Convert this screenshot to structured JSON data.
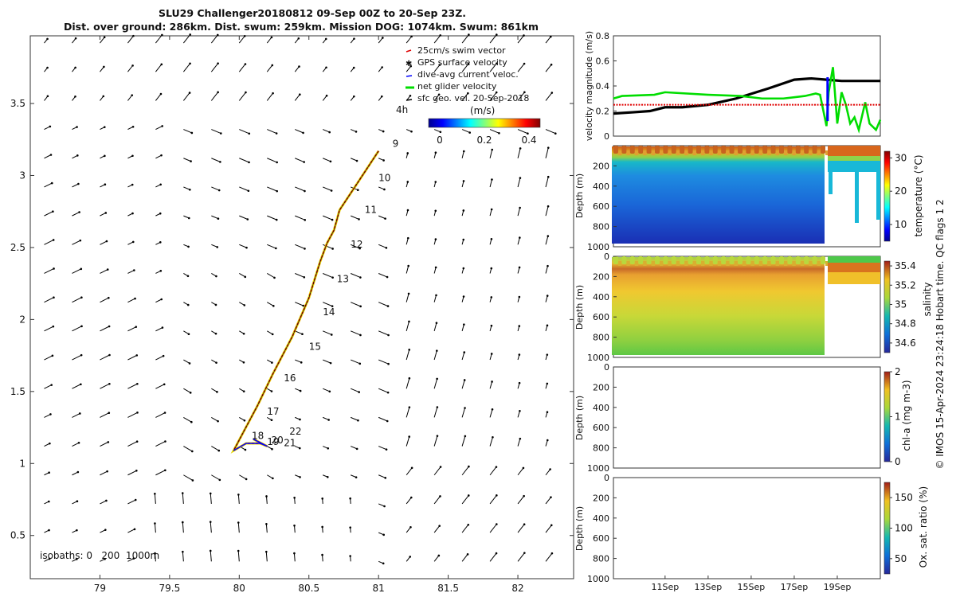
{
  "title": {
    "line1": "SLU29 Challenger20180812 09-Sep 00Z to 20-Sep 23Z.",
    "line2": "Dist. over ground: 286km. Dist. swum: 259km. Mission DOG: 1074km. Swum: 861km"
  },
  "colors": {
    "swim": "#e00000",
    "gps": "#8b00ff",
    "current": "#0000ff",
    "net": "#00dd00",
    "sfc": "#000000",
    "track": "#e8d800"
  },
  "chart_data": [
    {
      "type": "scatter",
      "title": "glider track with surface geostrophic velocity vectors",
      "xlim": [
        78.5,
        82.4
      ],
      "ylim": [
        0.2,
        3.97
      ],
      "xticks": [
        79,
        79.5,
        80,
        80.5,
        81,
        81.5,
        82
      ],
      "xtick_labels": [
        "79",
        "79.5",
        "80",
        "80.5",
        "81",
        "81.5",
        "82"
      ],
      "yticks": [
        0.5,
        1,
        1.5,
        2,
        2.5,
        3,
        3.5
      ],
      "ytick_labels": [
        "0.5",
        "1",
        "1.5",
        "2",
        "2.5",
        "3",
        "3.5"
      ],
      "legend": [
        {
          "label": "25cm/s swim vector",
          "color": "#e00000"
        },
        {
          "label": "GPS surface velocity",
          "color": "#8b00ff"
        },
        {
          "label": "dive-avg current veloc.",
          "color": "#0000ff"
        },
        {
          "label": "net glider velocity",
          "color": "#00dd00"
        },
        {
          "label": "sfc geo. vel. 20-Sep-2018",
          "color": "#000000"
        }
      ],
      "scale_label": "4h",
      "colorbar": {
        "label": "(m/s)",
        "range": [
          0,
          0.5
        ],
        "ticks": [
          0,
          0.2,
          0.4
        ],
        "tick_labels": [
          "0",
          "0.2",
          "0.4"
        ]
      },
      "isobaths_label": "isobaths: 0   200  1000m",
      "track": [
        [
          81.0,
          3.17
        ],
        [
          80.85,
          2.95
        ],
        [
          80.72,
          2.76
        ],
        [
          80.68,
          2.62
        ],
        [
          80.63,
          2.53
        ],
        [
          80.58,
          2.4
        ],
        [
          80.5,
          2.15
        ],
        [
          80.38,
          1.88
        ],
        [
          80.24,
          1.62
        ],
        [
          80.13,
          1.4
        ],
        [
          80.02,
          1.2
        ],
        [
          79.96,
          1.09
        ],
        [
          80.05,
          1.14
        ],
        [
          80.15,
          1.14
        ],
        [
          80.2,
          1.12
        ],
        [
          80.1,
          1.17
        ]
      ],
      "day_labels": [
        {
          "text": "9",
          "lon": 81.1,
          "lat": 3.2
        },
        {
          "text": "10",
          "lon": 81.0,
          "lat": 2.96
        },
        {
          "text": "11",
          "lon": 80.9,
          "lat": 2.74
        },
        {
          "text": "12",
          "lon": 80.8,
          "lat": 2.5
        },
        {
          "text": "13",
          "lon": 80.7,
          "lat": 2.26
        },
        {
          "text": "14",
          "lon": 80.6,
          "lat": 2.03
        },
        {
          "text": "15",
          "lon": 80.5,
          "lat": 1.79
        },
        {
          "text": "16",
          "lon": 80.32,
          "lat": 1.57
        },
        {
          "text": "17",
          "lon": 80.2,
          "lat": 1.34
        },
        {
          "text": "22",
          "lon": 80.36,
          "lat": 1.2
        },
        {
          "text": "18",
          "lon": 80.09,
          "lat": 1.17
        },
        {
          "text": "19",
          "lon": 80.2,
          "lat": 1.13
        },
        {
          "text": "20",
          "lon": 80.23,
          "lat": 1.14
        },
        {
          "text": "21",
          "lon": 80.32,
          "lat": 1.12
        }
      ]
    },
    {
      "type": "line",
      "ylabel": "velocity magnitude (m/s)",
      "ylim": [
        0,
        0.8
      ],
      "yticks": [
        0,
        0.2,
        0.4,
        0.6,
        0.8
      ],
      "ytick_labels": [
        "0",
        "0.2",
        "0.4",
        "0.6",
        "0.8"
      ],
      "xlim_days": [
        8.6,
        21.0
      ],
      "series": [
        {
          "name": "sfc geo. vel.",
          "color": "#000000",
          "x": [
            8.6,
            9.5,
            10.3,
            11.0,
            11.8,
            13.0,
            14.3,
            15.8,
            17.0,
            17.8,
            18.5,
            19.2,
            20.0,
            21.0
          ],
          "values": [
            0.18,
            0.19,
            0.2,
            0.23,
            0.23,
            0.25,
            0.3,
            0.38,
            0.45,
            0.46,
            0.45,
            0.44,
            0.44,
            0.44
          ]
        },
        {
          "name": "net glider velocity",
          "color": "#00dd00",
          "x": [
            8.6,
            9.0,
            10.5,
            11.0,
            13.0,
            14.5,
            15.5,
            16.5,
            17.0,
            17.5,
            18.0,
            18.2,
            18.5,
            18.6,
            18.8,
            19.0,
            19.2,
            19.4,
            19.6,
            19.8,
            20.0,
            20.3,
            20.5,
            20.8,
            21.0
          ],
          "values": [
            0.3,
            0.32,
            0.33,
            0.35,
            0.33,
            0.32,
            0.3,
            0.3,
            0.31,
            0.32,
            0.34,
            0.33,
            0.08,
            0.35,
            0.55,
            0.1,
            0.35,
            0.25,
            0.1,
            0.15,
            0.05,
            0.27,
            0.1,
            0.05,
            0.13
          ]
        },
        {
          "name": "25cm/s swim vector",
          "color": "#e00000",
          "x": [
            8.6,
            21.0
          ],
          "values": [
            0.25,
            0.25
          ]
        },
        {
          "name": "dive-avg current veloc.",
          "color": "#0000ff",
          "x": [
            18.55,
            18.55
          ],
          "values": [
            0.12,
            0.47
          ]
        }
      ]
    },
    {
      "type": "heatmap",
      "ylabel": "Depth (m)",
      "ylim": [
        1000,
        0
      ],
      "yticks": [
        200,
        400,
        600,
        800,
        1000
      ],
      "ytick_labels": [
        "200",
        "400",
        "600",
        "800",
        "1000"
      ],
      "colorbar": {
        "label": "temperature (°C)",
        "range": [
          5,
          32
        ],
        "ticks": [
          10,
          20,
          30
        ],
        "tick_labels": [
          "10",
          "20",
          "30"
        ]
      },
      "summary": "warm (~29 °C) surface layer to ~100 m, thermocline near 150 m, ~8-12 °C at depth; dives to 1000 m until 18-Sep then shallow profiles"
    },
    {
      "type": "heatmap",
      "ylabel": "Depth (m)",
      "ylim": [
        1000,
        0
      ],
      "yticks": [
        0,
        200,
        400,
        600,
        800,
        1000
      ],
      "ytick_labels": [
        "0",
        "200",
        "400",
        "600",
        "800",
        "1000"
      ],
      "colorbar": {
        "label": "salinity",
        "range": [
          34.5,
          35.45
        ],
        "ticks": [
          34.6,
          34.8,
          35,
          35.2,
          35.4
        ],
        "tick_labels": [
          "34.6",
          "34.8",
          "35",
          "35.2",
          "35.4"
        ]
      },
      "summary": "fresher (~34.8) surface, salinity maximum (~35.3) near 120 m, ~35.0 at depth"
    },
    {
      "type": "heatmap",
      "ylabel": "Depth (m)",
      "ylim": [
        1000,
        0
      ],
      "yticks": [
        0,
        200,
        400,
        600,
        800,
        1000
      ],
      "ytick_labels": [
        "0",
        "200",
        "400",
        "600",
        "800",
        "1000"
      ],
      "colorbar": {
        "label": "chl-a (mg m-3)",
        "range": [
          0,
          2
        ],
        "ticks": [
          0,
          1,
          2
        ],
        "tick_labels": [
          "0",
          "1",
          "2"
        ]
      },
      "summary": "no data"
    },
    {
      "type": "heatmap",
      "ylabel": "Depth (m)",
      "ylim": [
        1000,
        0
      ],
      "yticks": [
        0,
        200,
        400,
        600,
        800,
        1000
      ],
      "ytick_labels": [
        "0",
        "200",
        "400",
        "600",
        "800",
        "1000"
      ],
      "xticks_days": [
        11,
        13,
        15,
        17,
        19
      ],
      "xtick_labels": [
        "11Sep",
        "13Sep",
        "15Sep",
        "17Sep",
        "19Sep"
      ],
      "colorbar": {
        "label": "Ox. sat. ratio (%)",
        "range": [
          25,
          175
        ],
        "ticks": [
          50,
          100,
          150
        ],
        "tick_labels": [
          "50",
          "100",
          "150"
        ]
      },
      "summary": "no data"
    }
  ],
  "footer": "© IMOS 15-Apr-2024 23:24:18 Hobart time. QC flags 1  2"
}
